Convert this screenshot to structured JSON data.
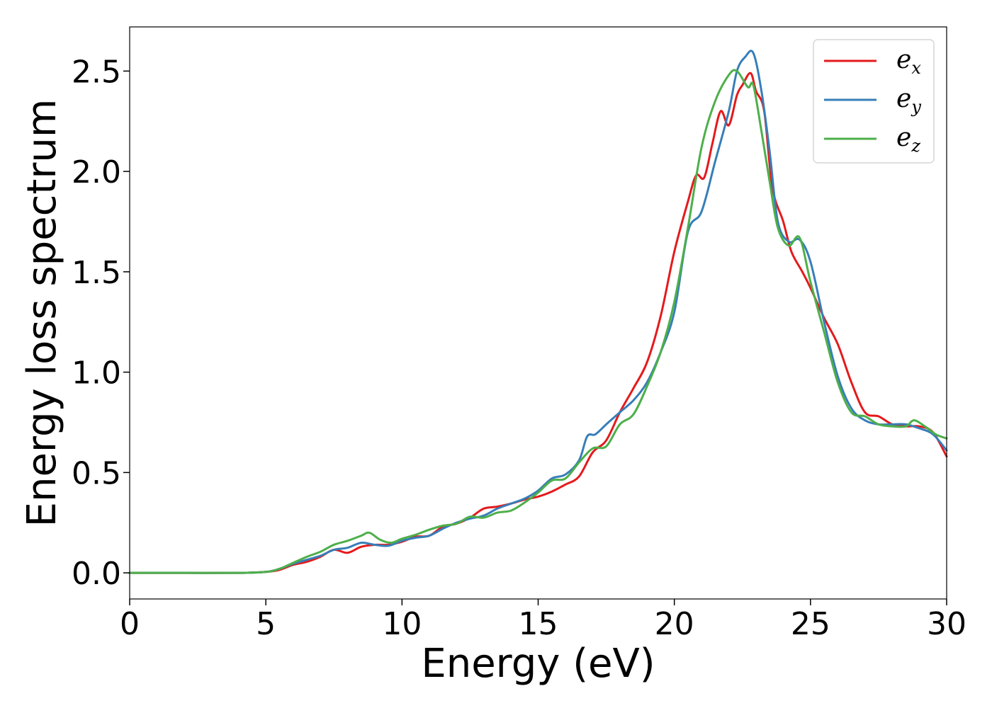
{
  "chart_data": {
    "type": "line",
    "xlabel": "Energy (eV)",
    "ylabel": "Energy loss spectrum",
    "xlim": [
      0,
      30
    ],
    "ylim": [
      -0.13,
      2.72
    ],
    "xticks": [
      0,
      5,
      10,
      15,
      20,
      25,
      30
    ],
    "xtick_labels": [
      "0",
      "5",
      "10",
      "15",
      "20",
      "25",
      "30"
    ],
    "yticks": [
      0.0,
      0.5,
      1.0,
      1.5,
      2.0,
      2.5
    ],
    "ytick_labels": [
      "0.0",
      "0.5",
      "1.0",
      "1.5",
      "2.0",
      "2.5"
    ],
    "grid": false,
    "legend_position": "top-right",
    "series": [
      {
        "name": "e",
        "subscript": "x",
        "color": "#e41a1c",
        "x": [
          0,
          2,
          4,
          5,
          5.5,
          6,
          6.5,
          7,
          7.5,
          8,
          8.5,
          9,
          9.5,
          10,
          10.5,
          11,
          11.5,
          12,
          12.5,
          13,
          13.5,
          14,
          14.5,
          15,
          15.5,
          16,
          16.5,
          17,
          17.5,
          18,
          18.5,
          19,
          19.5,
          20,
          20.5,
          20.8,
          21.1,
          21.4,
          21.7,
          22.0,
          22.3,
          22.5,
          22.8,
          23.0,
          23.3,
          23.6,
          24.0,
          24.3,
          24.7,
          25.0,
          25.5,
          26.0,
          26.5,
          27.0,
          27.5,
          28.0,
          28.5,
          29.0,
          29.5,
          30
        ],
        "values": [
          0,
          0,
          0,
          0.005,
          0.015,
          0.04,
          0.055,
          0.08,
          0.115,
          0.1,
          0.13,
          0.14,
          0.14,
          0.155,
          0.18,
          0.185,
          0.23,
          0.245,
          0.275,
          0.32,
          0.33,
          0.345,
          0.365,
          0.38,
          0.405,
          0.44,
          0.48,
          0.6,
          0.66,
          0.8,
          0.92,
          1.05,
          1.28,
          1.6,
          1.85,
          1.98,
          1.97,
          2.14,
          2.3,
          2.23,
          2.38,
          2.43,
          2.49,
          2.4,
          2.3,
          1.92,
          1.75,
          1.6,
          1.5,
          1.42,
          1.27,
          1.14,
          0.95,
          0.8,
          0.78,
          0.74,
          0.73,
          0.73,
          0.7,
          0.58
        ]
      },
      {
        "name": "e",
        "subscript": "y",
        "color": "#377eb8",
        "x": [
          0,
          2,
          4,
          5,
          5.5,
          6,
          6.5,
          7,
          7.5,
          8,
          8.5,
          9,
          9.5,
          10,
          10.5,
          11,
          11.5,
          12,
          12.5,
          13,
          13.5,
          14,
          14.5,
          15,
          15.5,
          16,
          16.5,
          16.8,
          17.1,
          17.5,
          18,
          18.5,
          19,
          19.5,
          20,
          20.5,
          21.0,
          21.5,
          22.0,
          22.3,
          22.6,
          22.9,
          23.2,
          23.5,
          23.8,
          24.2,
          24.6,
          25.0,
          25.5,
          26.0,
          26.5,
          27.0,
          27.5,
          28.0,
          28.5,
          29.0,
          29.5,
          30
        ],
        "values": [
          0,
          0,
          0,
          0.005,
          0.02,
          0.045,
          0.065,
          0.085,
          0.115,
          0.125,
          0.15,
          0.14,
          0.135,
          0.16,
          0.175,
          0.185,
          0.22,
          0.25,
          0.27,
          0.285,
          0.32,
          0.345,
          0.37,
          0.41,
          0.47,
          0.49,
          0.56,
          0.68,
          0.69,
          0.74,
          0.8,
          0.86,
          0.95,
          1.1,
          1.3,
          1.7,
          1.8,
          2.05,
          2.3,
          2.5,
          2.57,
          2.59,
          2.4,
          2.1,
          1.75,
          1.65,
          1.66,
          1.55,
          1.25,
          0.98,
          0.82,
          0.76,
          0.74,
          0.74,
          0.74,
          0.72,
          0.69,
          0.61
        ]
      },
      {
        "name": "e",
        "subscript": "z",
        "color": "#4daf4a",
        "x": [
          0,
          2,
          4,
          5,
          5.5,
          6,
          6.5,
          7,
          7.5,
          8,
          8.5,
          8.8,
          9.2,
          9.6,
          10,
          10.5,
          11,
          11.5,
          12,
          12.5,
          13,
          13.5,
          14,
          14.5,
          15,
          15.5,
          16,
          16.5,
          17,
          17.5,
          18,
          18.5,
          19,
          19.5,
          20,
          20.5,
          21.0,
          21.5,
          22.0,
          22.3,
          22.7,
          22.9,
          23.2,
          23.5,
          23.8,
          24.2,
          24.6,
          25.0,
          25.5,
          26.0,
          26.5,
          27.0,
          27.5,
          28.0,
          28.5,
          28.8,
          29.2,
          29.6,
          30
        ],
        "values": [
          0,
          0,
          0,
          0.005,
          0.02,
          0.05,
          0.08,
          0.105,
          0.14,
          0.16,
          0.185,
          0.2,
          0.165,
          0.15,
          0.17,
          0.19,
          0.215,
          0.235,
          0.245,
          0.28,
          0.275,
          0.3,
          0.31,
          0.35,
          0.4,
          0.46,
          0.47,
          0.55,
          0.62,
          0.63,
          0.74,
          0.79,
          0.93,
          1.1,
          1.35,
          1.72,
          2.12,
          2.35,
          2.48,
          2.5,
          2.42,
          2.43,
          2.2,
          1.95,
          1.72,
          1.63,
          1.67,
          1.45,
          1.2,
          0.95,
          0.8,
          0.78,
          0.74,
          0.73,
          0.73,
          0.76,
          0.73,
          0.69,
          0.67
        ]
      }
    ]
  }
}
